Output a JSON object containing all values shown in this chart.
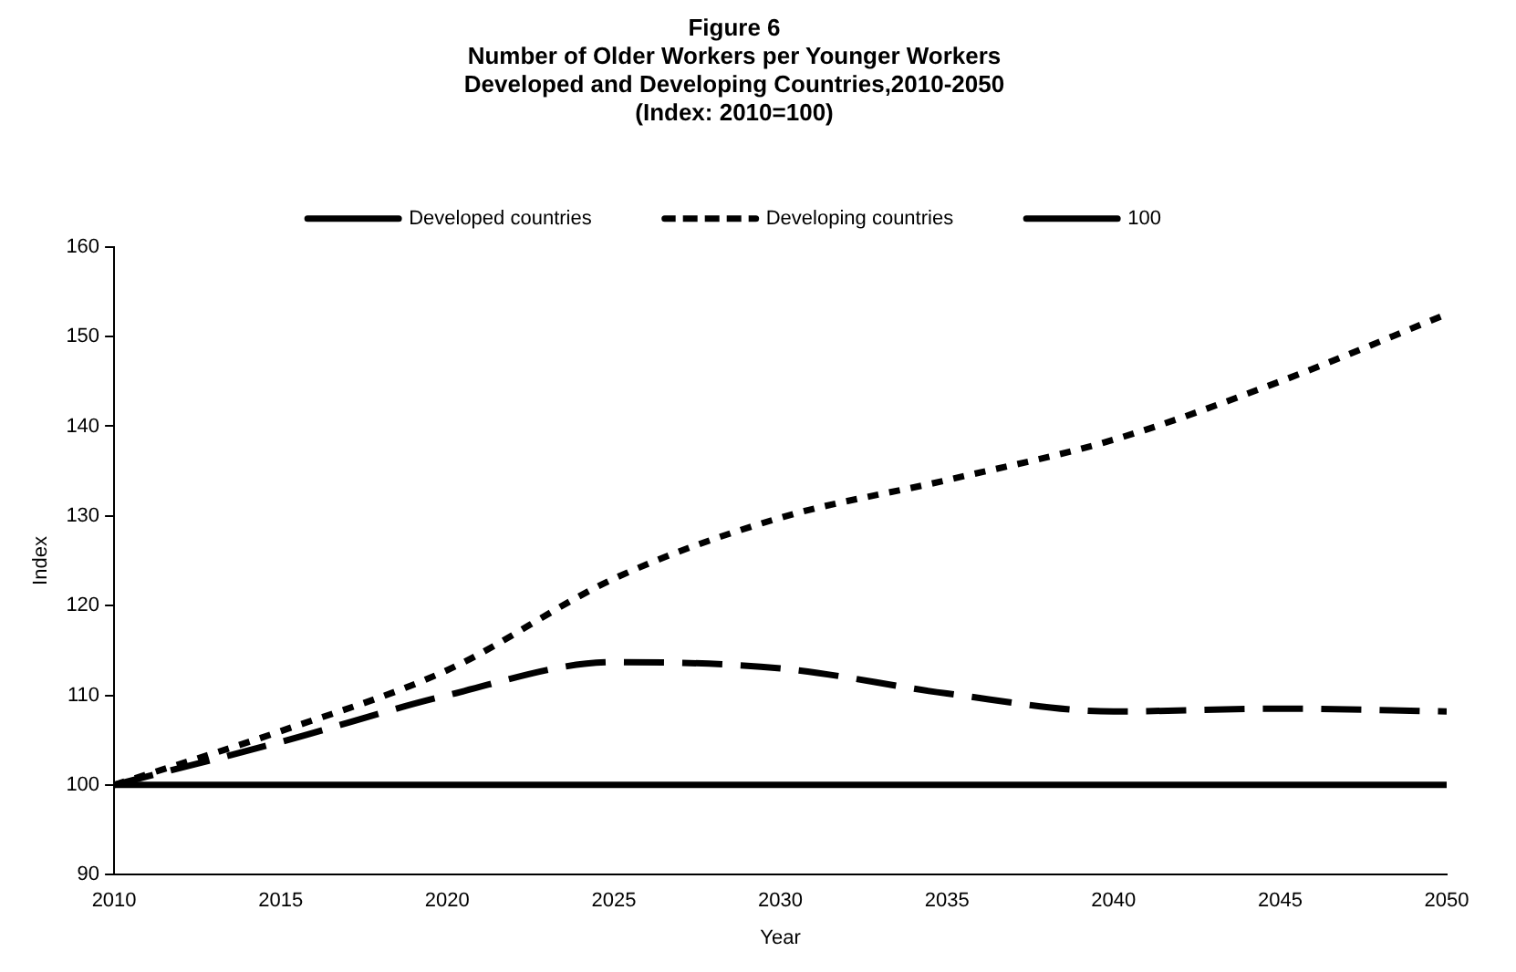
{
  "chart_data": {
    "type": "line",
    "title": "Figure 6\nNumber of Older Workers per Younger Workers\nDeveloped and Developing Countries,2010-2050\n(Index: 2010=100)",
    "xlabel": "Year",
    "ylabel": "Index",
    "x": [
      2010,
      2015,
      2020,
      2025,
      2030,
      2035,
      2040,
      2045,
      2050
    ],
    "series": [
      {
        "name": "Developed countries",
        "color": "#000000",
        "line_style": "dashed",
        "values": [
          100,
          104.8,
          110,
          113.7,
          113,
          110.2,
          108.2,
          108.5,
          108.2
        ]
      },
      {
        "name": "Developing countries",
        "color": "#000000",
        "line_style": "dotted",
        "values": [
          100,
          106,
          112.8,
          123,
          129.8,
          134,
          138.5,
          145,
          152.5
        ]
      },
      {
        "name": "100",
        "color": "#000000",
        "line_style": "solid",
        "values": [
          100,
          100,
          100,
          100,
          100,
          100,
          100,
          100,
          100
        ]
      }
    ],
    "xlim": [
      2010,
      2050
    ],
    "xticks": [
      2010,
      2015,
      2020,
      2025,
      2030,
      2035,
      2040,
      2045,
      2050
    ],
    "ylim": [
      90,
      160
    ],
    "yticks": [
      90,
      100,
      110,
      120,
      130,
      140,
      150,
      160
    ],
    "grid": false,
    "legend": "top",
    "marker": "none"
  }
}
